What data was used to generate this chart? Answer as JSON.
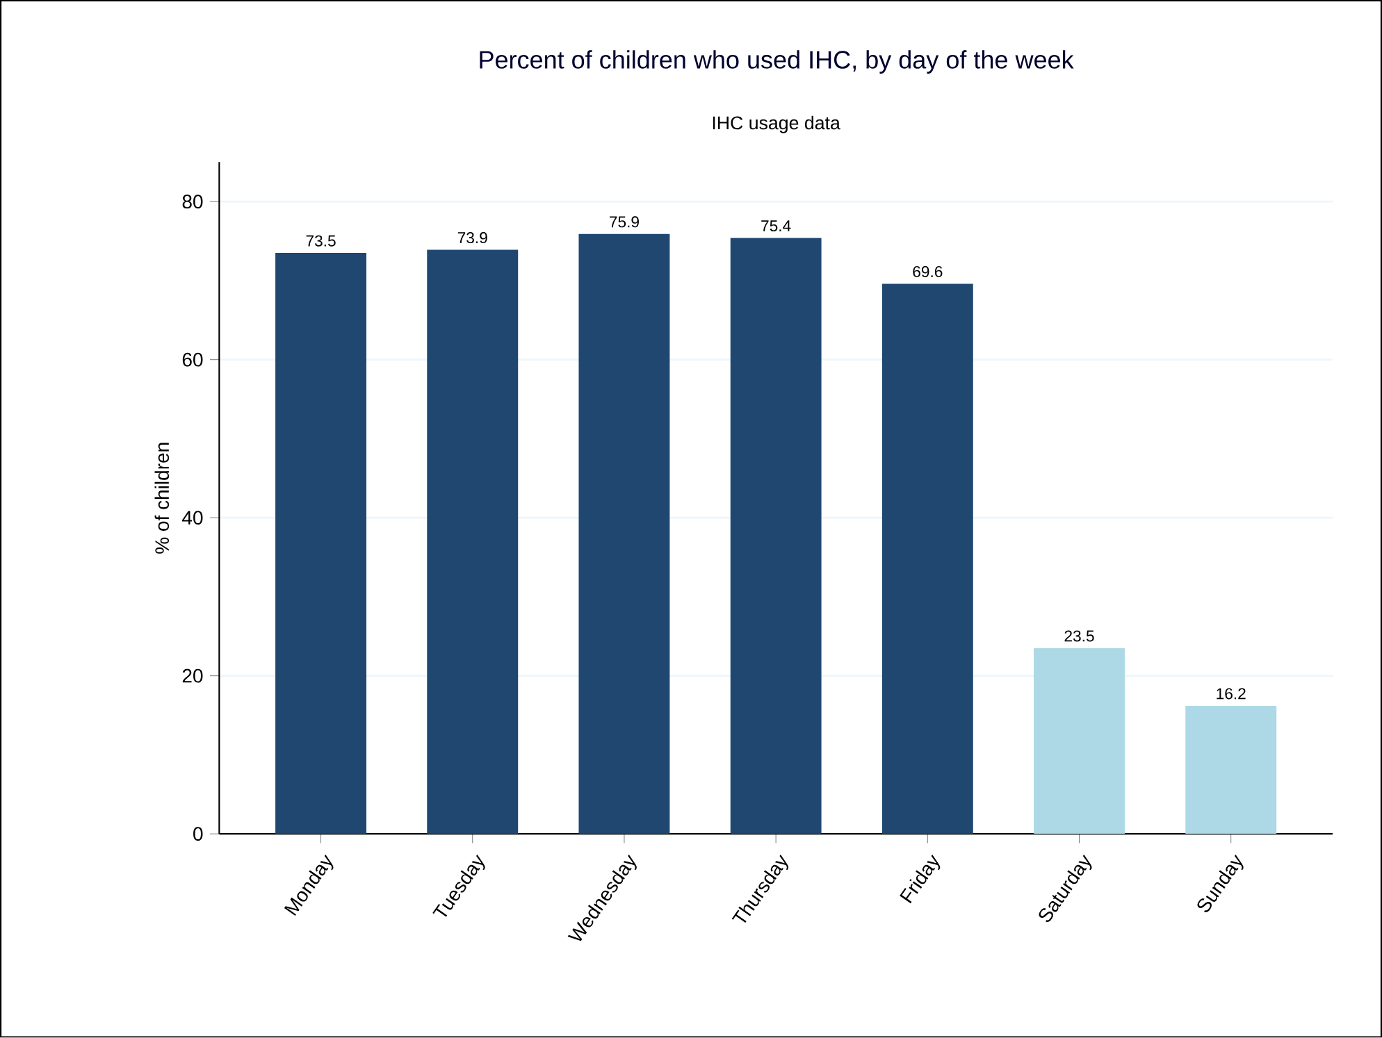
{
  "chart_data": {
    "type": "bar",
    "title": "Percent of children who used IHC, by day of the week",
    "subtitle": "IHC usage data",
    "ylabel": "% of children",
    "categories": [
      "Monday",
      "Tuesday",
      "Wednesday",
      "Thursday",
      "Friday",
      "Saturday",
      "Sunday"
    ],
    "values": [
      73.5,
      73.9,
      75.9,
      75.4,
      69.6,
      23.5,
      16.2
    ],
    "colors": [
      "#1f4770",
      "#1f4770",
      "#1f4770",
      "#1f4770",
      "#1f4770",
      "#add8e6",
      "#add8e6"
    ],
    "ylim": [
      0,
      85
    ],
    "yticks": [
      0,
      20,
      40,
      60,
      80
    ],
    "grid": "y",
    "data_labels": true
  }
}
